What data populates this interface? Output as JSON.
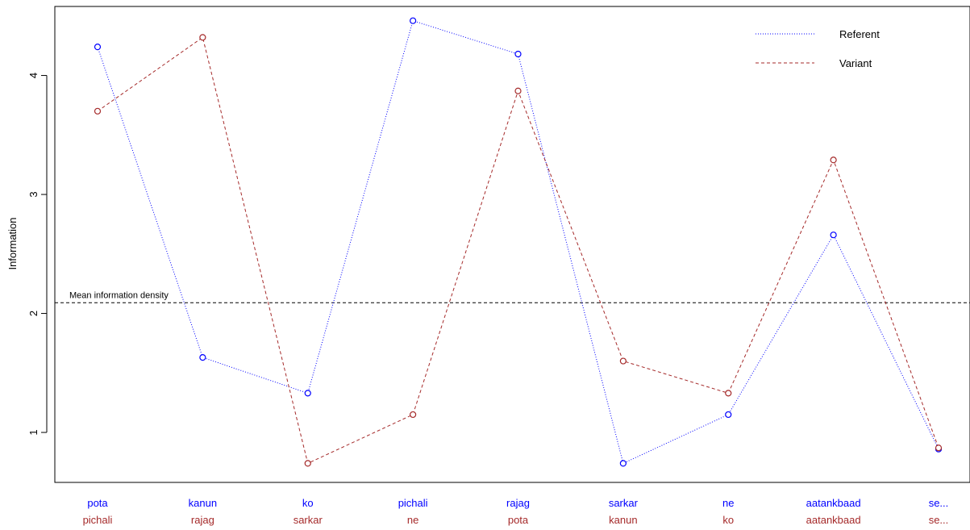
{
  "chart_data": {
    "type": "line",
    "title": "",
    "xlabel": "",
    "ylabel": "Information",
    "ylim": [
      0.58,
      4.58
    ],
    "yticks": [
      1,
      2,
      3,
      4
    ],
    "grid": false,
    "legend_position": "top-right",
    "categories_referent": [
      "pota",
      "kanun",
      "ko",
      "pichali",
      "rajag",
      "sarkar",
      "ne",
      "aatankbaad",
      "se..."
    ],
    "categories_variant": [
      "pichali",
      "rajag",
      "sarkar",
      "ne",
      "pota",
      "kanun",
      "ko",
      "aatankbaad",
      "se..."
    ],
    "series": [
      {
        "name": "Referent",
        "color": "#0000ff",
        "linestyle": "dotted",
        "values": [
          4.24,
          1.63,
          1.33,
          4.46,
          4.18,
          0.74,
          1.15,
          2.66,
          0.86
        ]
      },
      {
        "name": "Variant",
        "color": "#a52a2a",
        "linestyle": "dashed",
        "values": [
          3.7,
          4.32,
          0.74,
          1.15,
          3.87,
          1.6,
          1.33,
          3.29,
          0.87
        ]
      }
    ],
    "reference_line": {
      "value": 2.09,
      "label": "Mean information density"
    }
  }
}
